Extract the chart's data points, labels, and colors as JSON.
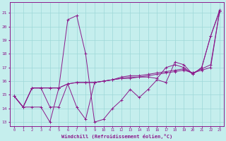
{
  "xlabel": "Windchill (Refroidissement éolien,°C)",
  "xlim": [
    -0.5,
    23.5
  ],
  "ylim": [
    12.7,
    21.8
  ],
  "xticks": [
    0,
    1,
    2,
    3,
    4,
    5,
    6,
    7,
    8,
    9,
    10,
    11,
    12,
    13,
    14,
    15,
    16,
    17,
    18,
    19,
    20,
    21,
    22,
    23
  ],
  "yticks": [
    13,
    14,
    15,
    16,
    17,
    18,
    19,
    20,
    21
  ],
  "bg_color": "#c5eeed",
  "line_color": "#8b1a8b",
  "grid_color": "#9ed8d8",
  "lines": [
    [
      14.9,
      14.1,
      14.1,
      14.1,
      13.0,
      15.5,
      20.5,
      20.8,
      18.0,
      13.0,
      13.2,
      14.0,
      14.6,
      15.4,
      14.8,
      15.4,
      16.1,
      15.9,
      17.4,
      17.2,
      16.5,
      17.0,
      19.3,
      21.2
    ],
    [
      14.9,
      14.1,
      15.5,
      15.5,
      15.5,
      15.5,
      15.8,
      15.9,
      15.9,
      15.9,
      16.0,
      16.1,
      16.2,
      16.3,
      16.3,
      16.4,
      16.5,
      16.6,
      16.7,
      16.8,
      16.6,
      16.8,
      17.0,
      21.1
    ],
    [
      14.9,
      14.1,
      15.5,
      15.5,
      15.5,
      15.5,
      15.8,
      15.9,
      15.9,
      15.9,
      16.0,
      16.1,
      16.3,
      16.4,
      16.4,
      16.5,
      16.6,
      16.7,
      16.8,
      16.9,
      16.6,
      16.9,
      17.2,
      21.1
    ],
    [
      14.9,
      14.1,
      15.5,
      15.5,
      14.1,
      14.1,
      15.8,
      14.1,
      13.2,
      15.9,
      16.0,
      16.1,
      16.2,
      16.2,
      16.3,
      16.3,
      16.2,
      17.0,
      17.2,
      17.0,
      16.5,
      17.0,
      19.3,
      21.1
    ]
  ]
}
